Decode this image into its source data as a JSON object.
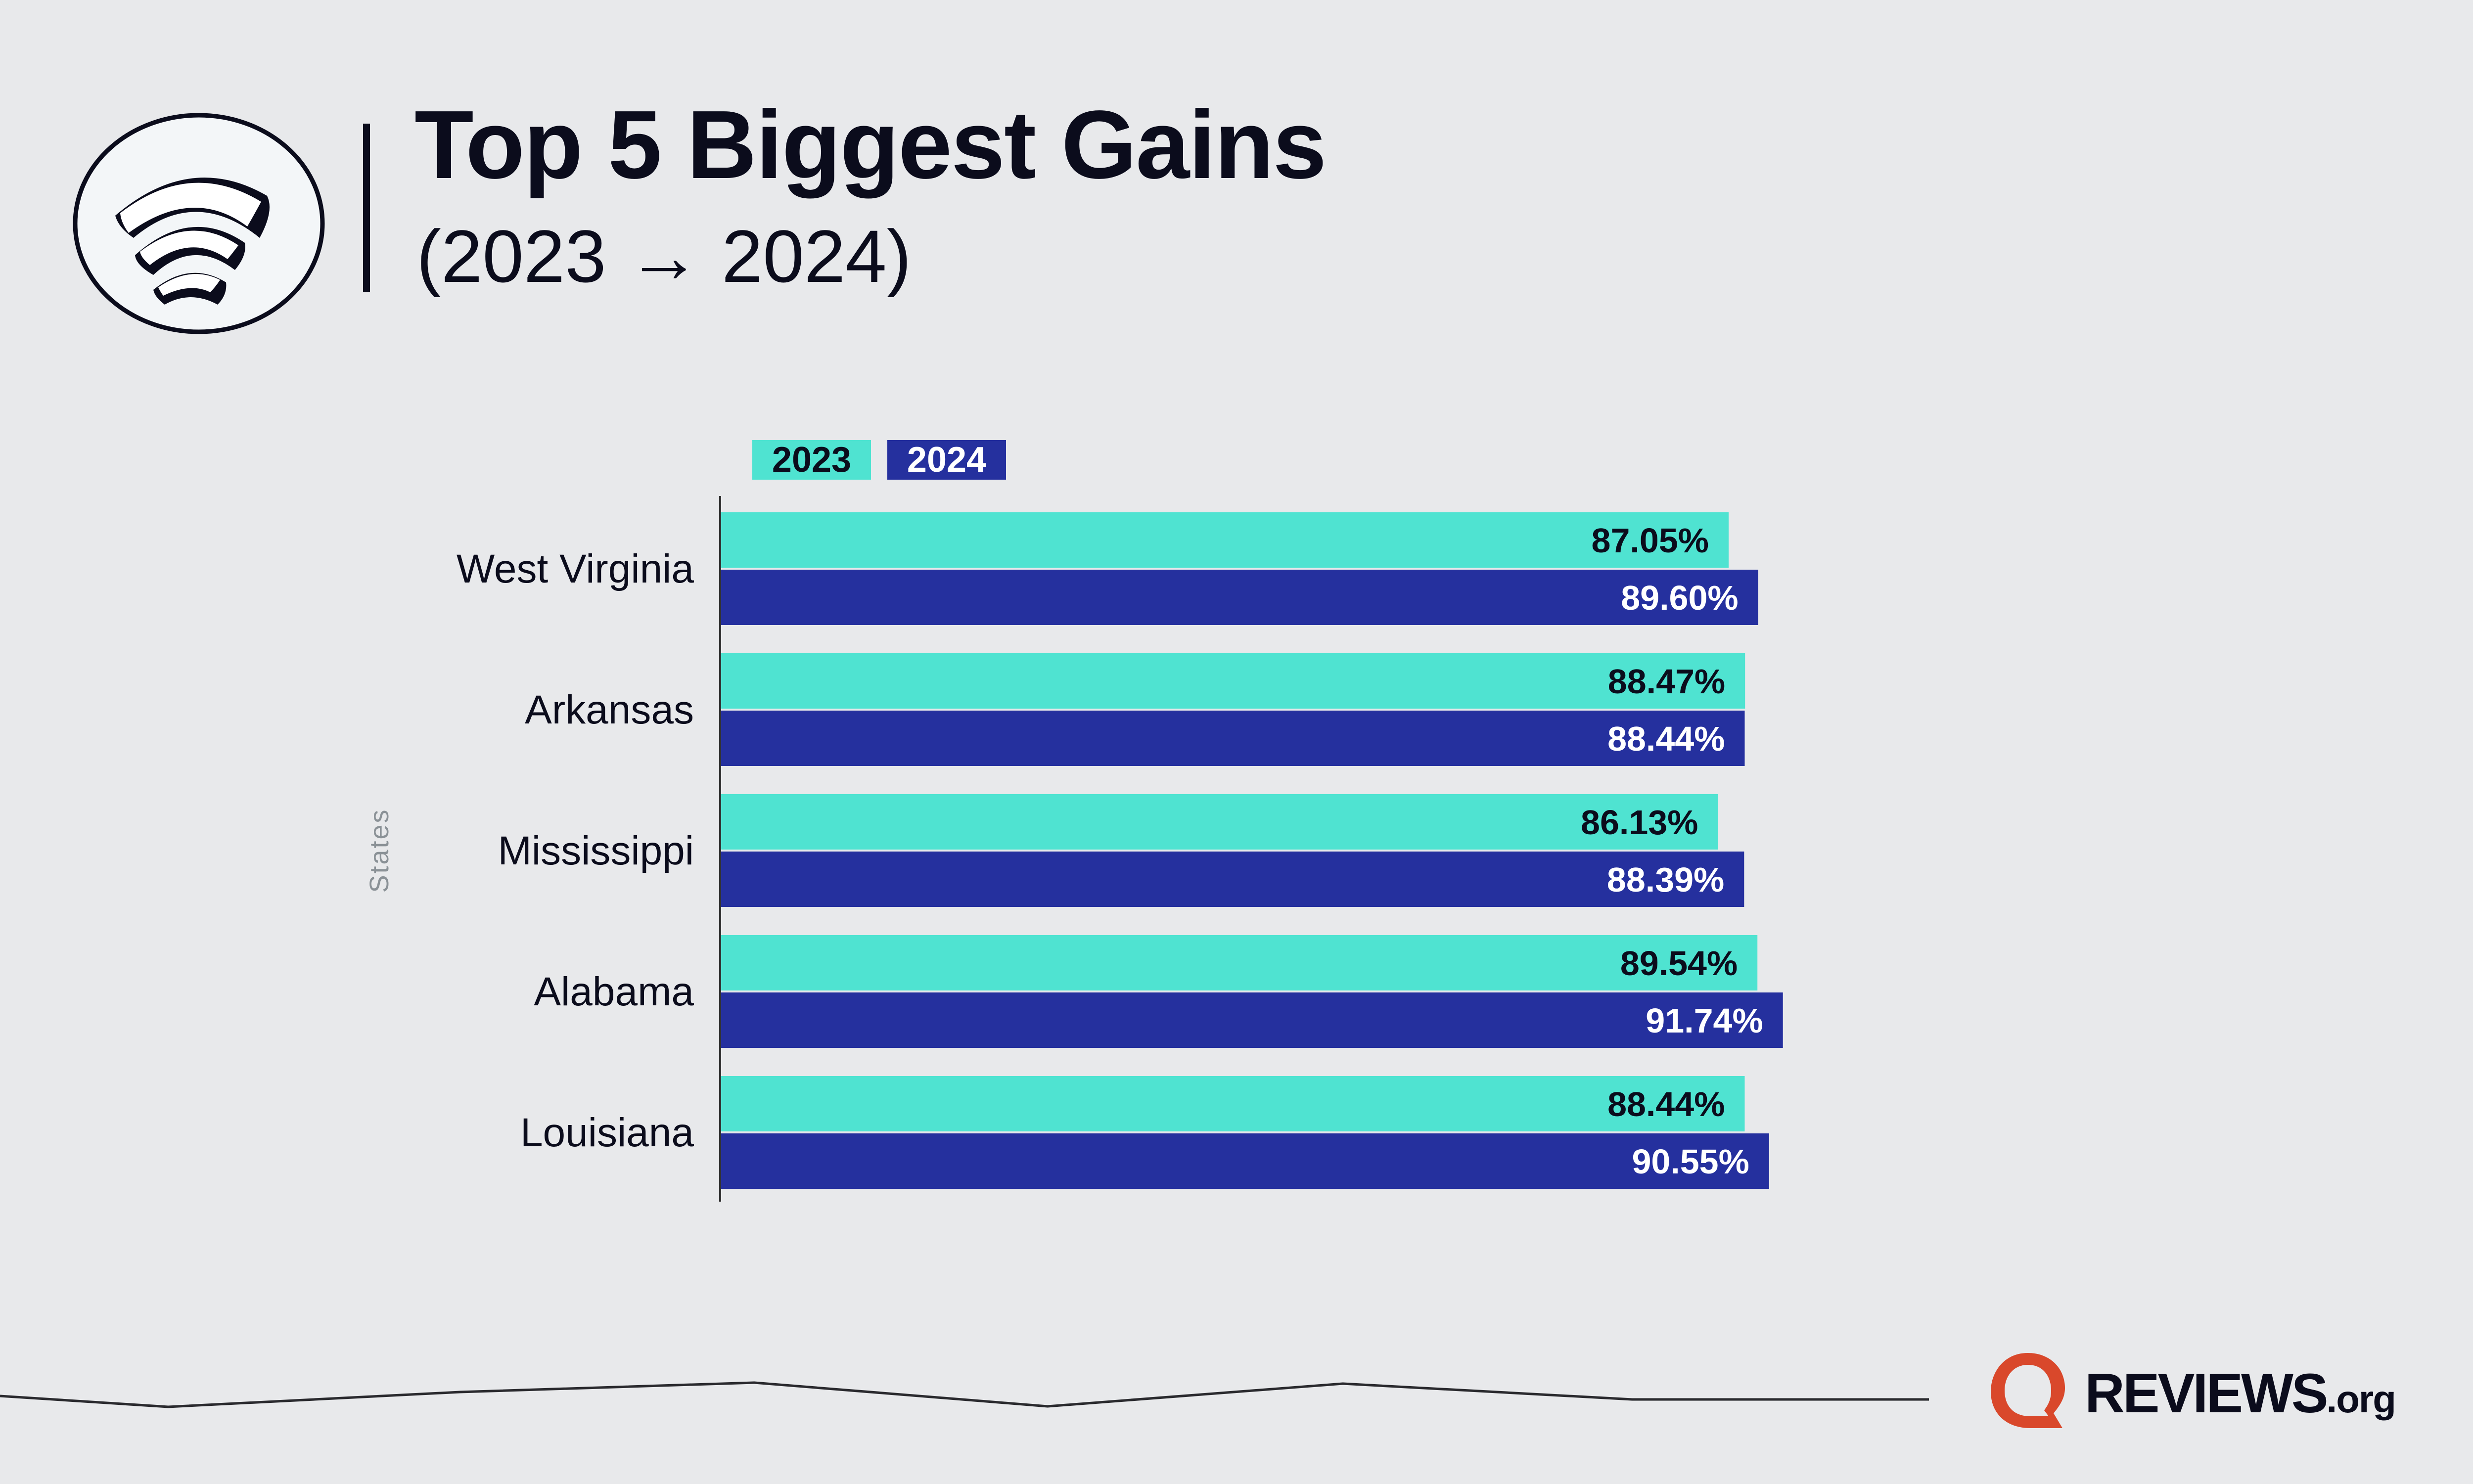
{
  "header": {
    "title": "Top 5 Biggest Gains",
    "subtitle": "(2023 → 2024)",
    "icon": "wifi-signal-icon"
  },
  "legend": [
    {
      "label": "2023",
      "color": "#4fe3d1",
      "text_color": "#0b0c1c"
    },
    {
      "label": "2024",
      "color": "#25309e",
      "text_color": "#ffffff"
    }
  ],
  "chart_data": {
    "type": "bar",
    "orientation": "horizontal",
    "title": "Top 5 Biggest Gains",
    "subtitle": "(2023 → 2024)",
    "xlabel": "",
    "ylabel": "States",
    "xlim": [
      0,
      100
    ],
    "grid": false,
    "legend_position": "top-left",
    "categories": [
      "West Virginia",
      "Arkansas",
      "Mississippi",
      "Alabama",
      "Louisiana"
    ],
    "series": [
      {
        "name": "2023",
        "color": "#4fe3d1",
        "label_color": "#0b0c1c",
        "values": [
          87.05,
          88.47,
          86.13,
          89.54,
          88.44
        ],
        "labels": [
          "87.05%",
          "88.47%",
          "86.13%",
          "89.54%",
          "88.44%"
        ]
      },
      {
        "name": "2024",
        "color": "#25309e",
        "label_color": "#ffffff",
        "values": [
          89.6,
          88.44,
          88.39,
          91.74,
          90.55
        ],
        "labels": [
          "89.60%",
          "88.44%",
          "88.39%",
          "91.74%",
          "90.55%"
        ]
      }
    ]
  },
  "branding": {
    "logo_mark": "reviews-q-logo-icon",
    "logo_text": "REVIEWS",
    "logo_suffix": ".org",
    "accent_color": "#d9482b"
  },
  "colors": {
    "background": "#e8e9eb",
    "text": "#0b0c1c"
  }
}
